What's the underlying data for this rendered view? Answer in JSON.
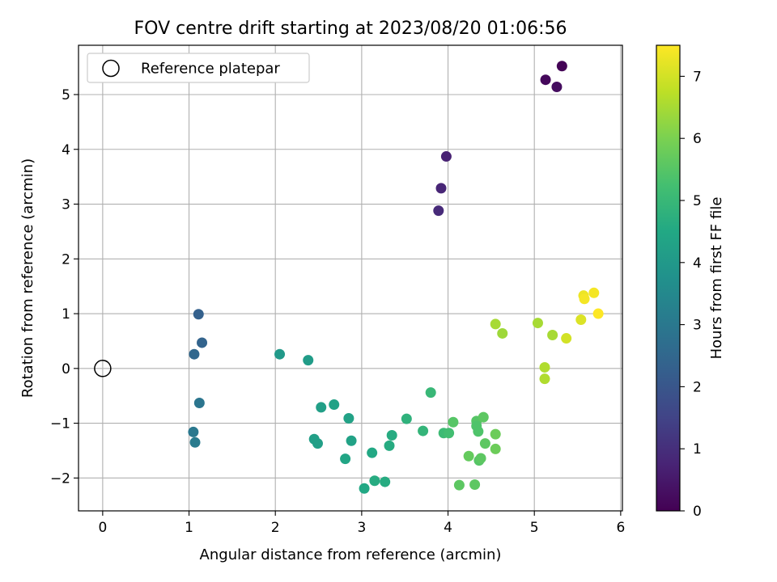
{
  "chart_data": {
    "type": "scatter",
    "title": "FOV centre drift starting at 2023/08/20 01:06:56",
    "xlabel": "Angular distance from reference (arcmin)",
    "ylabel": "Rotation from reference (arcmin)",
    "xlim": [
      -0.28,
      6.02
    ],
    "ylim": [
      -2.6,
      5.9
    ],
    "x_ticks": [
      0,
      1,
      2,
      3,
      4,
      5,
      6
    ],
    "x_tick_labels": [
      "0",
      "1",
      "2",
      "3",
      "4",
      "5",
      "6"
    ],
    "y_ticks": [
      -2,
      -1,
      0,
      1,
      2,
      3,
      4,
      5
    ],
    "y_tick_labels": [
      "−2",
      "−1",
      "0",
      "1",
      "2",
      "3",
      "4",
      "5"
    ],
    "grid": true,
    "legend": {
      "placement": "top-left",
      "entries": [
        "Reference platepar"
      ]
    },
    "reference_point": {
      "x": 0,
      "y": 0
    },
    "colorbar": {
      "label": "Hours from first FF file",
      "range": [
        0,
        7.5
      ],
      "ticks": [
        0,
        1,
        2,
        3,
        4,
        5,
        6,
        7
      ],
      "tick_labels": [
        "0",
        "1",
        "2",
        "3",
        "4",
        "5",
        "6",
        "7"
      ],
      "colormap": "viridis"
    },
    "points": [
      {
        "x": 5.32,
        "y": 5.52,
        "t": 0.05
      },
      {
        "x": 5.13,
        "y": 5.27,
        "t": 0.15
      },
      {
        "x": 5.26,
        "y": 5.14,
        "t": 0.25
      },
      {
        "x": 3.98,
        "y": 3.87,
        "t": 0.7
      },
      {
        "x": 3.92,
        "y": 3.29,
        "t": 0.8
      },
      {
        "x": 3.89,
        "y": 2.88,
        "t": 0.9
      },
      {
        "x": 1.11,
        "y": 0.99,
        "t": 2.3
      },
      {
        "x": 1.15,
        "y": 0.47,
        "t": 2.4
      },
      {
        "x": 1.06,
        "y": 0.26,
        "t": 2.5
      },
      {
        "x": 1.12,
        "y": -0.63,
        "t": 2.9
      },
      {
        "x": 1.05,
        "y": -1.16,
        "t": 3.0
      },
      {
        "x": 1.07,
        "y": -1.35,
        "t": 3.1
      },
      {
        "x": 2.05,
        "y": 0.26,
        "t": 4.0
      },
      {
        "x": 2.38,
        "y": 0.15,
        "t": 4.1
      },
      {
        "x": 2.53,
        "y": -0.71,
        "t": 4.2
      },
      {
        "x": 2.68,
        "y": -0.66,
        "t": 4.3
      },
      {
        "x": 2.85,
        "y": -0.91,
        "t": 4.3
      },
      {
        "x": 2.45,
        "y": -1.29,
        "t": 4.2
      },
      {
        "x": 2.49,
        "y": -1.37,
        "t": 4.2
      },
      {
        "x": 2.88,
        "y": -1.32,
        "t": 4.3
      },
      {
        "x": 2.81,
        "y": -1.65,
        "t": 4.4
      },
      {
        "x": 3.12,
        "y": -1.54,
        "t": 4.5
      },
      {
        "x": 3.15,
        "y": -2.05,
        "t": 4.6
      },
      {
        "x": 3.03,
        "y": -2.19,
        "t": 4.5
      },
      {
        "x": 3.27,
        "y": -2.07,
        "t": 4.6
      },
      {
        "x": 3.32,
        "y": -1.41,
        "t": 4.6
      },
      {
        "x": 3.35,
        "y": -1.22,
        "t": 4.6
      },
      {
        "x": 3.52,
        "y": -0.92,
        "t": 4.8
      },
      {
        "x": 3.71,
        "y": -1.14,
        "t": 4.9
      },
      {
        "x": 3.8,
        "y": -0.44,
        "t": 5.0
      },
      {
        "x": 3.95,
        "y": -1.18,
        "t": 5.1
      },
      {
        "x": 4.01,
        "y": -1.18,
        "t": 5.2
      },
      {
        "x": 4.06,
        "y": -0.98,
        "t": 5.5
      },
      {
        "x": 4.13,
        "y": -2.13,
        "t": 5.6
      },
      {
        "x": 4.24,
        "y": -1.6,
        "t": 5.7
      },
      {
        "x": 4.31,
        "y": -2.12,
        "t": 5.6
      },
      {
        "x": 4.33,
        "y": -0.96,
        "t": 5.5
      },
      {
        "x": 4.33,
        "y": -1.05,
        "t": 5.4
      },
      {
        "x": 4.35,
        "y": -1.15,
        "t": 5.4
      },
      {
        "x": 4.36,
        "y": -1.68,
        "t": 5.5
      },
      {
        "x": 4.38,
        "y": -1.64,
        "t": 5.6
      },
      {
        "x": 4.41,
        "y": -0.89,
        "t": 5.6
      },
      {
        "x": 4.43,
        "y": -1.37,
        "t": 5.6
      },
      {
        "x": 4.55,
        "y": -1.2,
        "t": 5.8
      },
      {
        "x": 4.55,
        "y": -1.47,
        "t": 5.8
      },
      {
        "x": 4.55,
        "y": 0.81,
        "t": 6.5
      },
      {
        "x": 4.63,
        "y": 0.64,
        "t": 6.4
      },
      {
        "x": 5.04,
        "y": 0.83,
        "t": 6.5
      },
      {
        "x": 5.12,
        "y": 0.02,
        "t": 6.6
      },
      {
        "x": 5.12,
        "y": -0.19,
        "t": 6.6
      },
      {
        "x": 5.21,
        "y": 0.61,
        "t": 6.5
      },
      {
        "x": 5.37,
        "y": 0.55,
        "t": 7.0
      },
      {
        "x": 5.54,
        "y": 0.89,
        "t": 7.1
      },
      {
        "x": 5.57,
        "y": 1.33,
        "t": 7.3
      },
      {
        "x": 5.58,
        "y": 1.27,
        "t": 7.4
      },
      {
        "x": 5.69,
        "y": 1.38,
        "t": 7.4
      },
      {
        "x": 5.74,
        "y": 1.0,
        "t": 7.5
      }
    ]
  }
}
